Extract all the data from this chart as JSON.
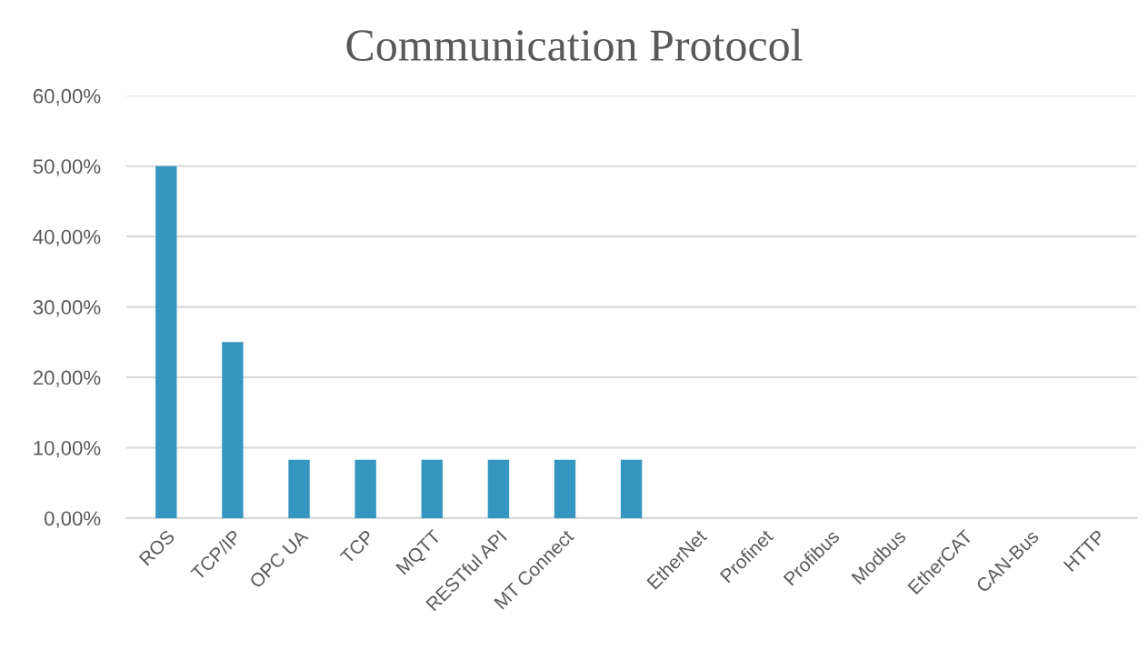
{
  "chart_data": {
    "type": "bar",
    "title": "Communication Protocol",
    "categories": [
      "ROS",
      "TCP/IP",
      "OPC UA",
      "TCP",
      "MQTT",
      "RESTful API",
      "MT Connect",
      null,
      "EtherNet",
      "Profinet",
      "Profibus",
      "Modbus",
      "EtherCAT",
      "CAN-Bus",
      "HTTP"
    ],
    "values": [
      50,
      25,
      8.3,
      8.3,
      8.3,
      8.3,
      8.3,
      8.3,
      0,
      0,
      0,
      0,
      0,
      0,
      0
    ],
    "color": "#3597c0",
    "ylim": [
      0,
      60
    ],
    "yticks": [
      {
        "value": 0,
        "label": "0,00%"
      },
      {
        "value": 10,
        "label": "10,00%"
      },
      {
        "value": 20,
        "label": "20,00%"
      },
      {
        "value": 30,
        "label": "30,00%"
      },
      {
        "value": 40,
        "label": "40,00%"
      },
      {
        "value": 50,
        "label": "50,00%"
      },
      {
        "value": 60,
        "label": "60,00%"
      }
    ],
    "grid": "y",
    "legend": false
  }
}
